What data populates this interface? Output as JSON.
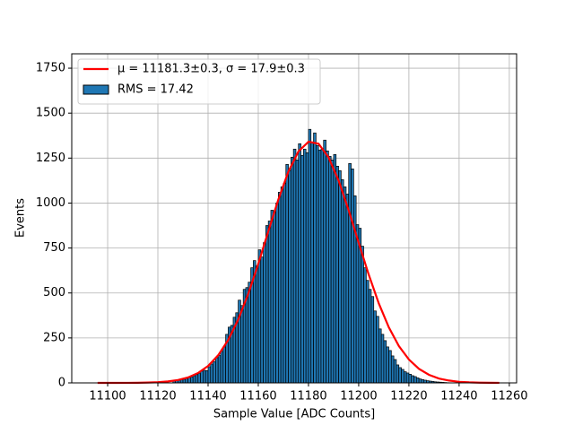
{
  "chart_data": {
    "type": "histogram",
    "xlabel": "Sample Value [ADC Counts]",
    "ylabel": "Events",
    "xlim": [
      11085.7,
      11262.9
    ],
    "ylim": [
      0,
      1830
    ],
    "xticks": [
      11100,
      11120,
      11140,
      11160,
      11180,
      11200,
      11220,
      11240,
      11260
    ],
    "yticks": [
      0,
      250,
      500,
      750,
      1000,
      1250,
      1500,
      1750
    ],
    "grid": true,
    "legend": "upper left",
    "histogram": {
      "name": "RMS = 17.42",
      "color": "#1f77b4",
      "edgecolor": "#000000",
      "bins": [
        11126,
        11127,
        11128,
        11129,
        11130,
        11131,
        11132,
        11133,
        11134,
        11135,
        11136,
        11137,
        11138,
        11139,
        11140,
        11141,
        11142,
        11143,
        11144,
        11145,
        11146,
        11147,
        11148,
        11149,
        11150,
        11151,
        11152,
        11153,
        11154,
        11155,
        11156,
        11157,
        11158,
        11159,
        11160,
        11161,
        11162,
        11163,
        11164,
        11165,
        11166,
        11167,
        11168,
        11169,
        11170,
        11171,
        11172,
        11173,
        11174,
        11175,
        11176,
        11177,
        11178,
        11179,
        11180,
        11181,
        11182,
        11183,
        11184,
        11185,
        11186,
        11187,
        11188,
        11189,
        11190,
        11191,
        11192,
        11193,
        11194,
        11195,
        11196,
        11197,
        11198,
        11199,
        11200,
        11201,
        11202,
        11203,
        11204,
        11205,
        11206,
        11207,
        11208,
        11209,
        11210,
        11211,
        11212,
        11213,
        11214,
        11215,
        11216,
        11217,
        11218,
        11219,
        11220,
        11221,
        11222,
        11223,
        11224,
        11225,
        11226,
        11227,
        11228,
        11229,
        11230,
        11231,
        11232,
        11233,
        11234,
        11235,
        11236
      ],
      "counts": [
        10,
        12,
        15,
        18,
        20,
        24,
        29,
        33,
        40,
        46,
        52,
        65,
        70,
        68,
        90,
        105,
        118,
        140,
        152,
        175,
        200,
        270,
        310,
        320,
        365,
        390,
        460,
        430,
        520,
        530,
        560,
        640,
        680,
        650,
        740,
        700,
        780,
        875,
        900,
        960,
        950,
        1000,
        1060,
        1090,
        1110,
        1215,
        1180,
        1255,
        1300,
        1240,
        1330,
        1265,
        1300,
        1280,
        1410,
        1340,
        1390,
        1320,
        1295,
        1300,
        1350,
        1290,
        1260,
        1240,
        1270,
        1205,
        1180,
        1130,
        1090,
        1050,
        1220,
        1190,
        1040,
        880,
        860,
        760,
        640,
        570,
        520,
        480,
        400,
        370,
        300,
        270,
        235,
        200,
        180,
        150,
        130,
        100,
        85,
        75,
        62,
        55,
        48,
        40,
        35,
        28,
        22,
        18,
        15,
        12,
        10,
        8,
        6,
        5,
        4,
        3,
        2,
        1
      ]
    },
    "fit": {
      "name": "μ = 11181.3±0.3, σ = 17.9±0.3",
      "color": "#ff0000",
      "x": [
        11096,
        11100,
        11104,
        11108,
        11112,
        11116,
        11120,
        11124,
        11128,
        11132,
        11136,
        11140,
        11144,
        11148,
        11152,
        11156,
        11160,
        11164,
        11168,
        11172,
        11176,
        11180,
        11184,
        11188,
        11192,
        11196,
        11200,
        11204,
        11208,
        11212,
        11216,
        11220,
        11224,
        11228,
        11232,
        11236,
        11240,
        11244,
        11248,
        11252,
        11256
      ],
      "values": [
        0,
        0.04,
        0.12,
        0.3,
        0.75,
        1.7,
        3.8,
        8,
        16,
        30,
        55,
        94,
        153,
        238,
        352,
        495,
        662,
        843,
        1020,
        1175,
        1287,
        1341,
        1330,
        1254,
        1125,
        960,
        779,
        602,
        442,
        309,
        205,
        130,
        78,
        45,
        24,
        13,
        6,
        3,
        1.3,
        0.6,
        0.2
      ]
    }
  }
}
